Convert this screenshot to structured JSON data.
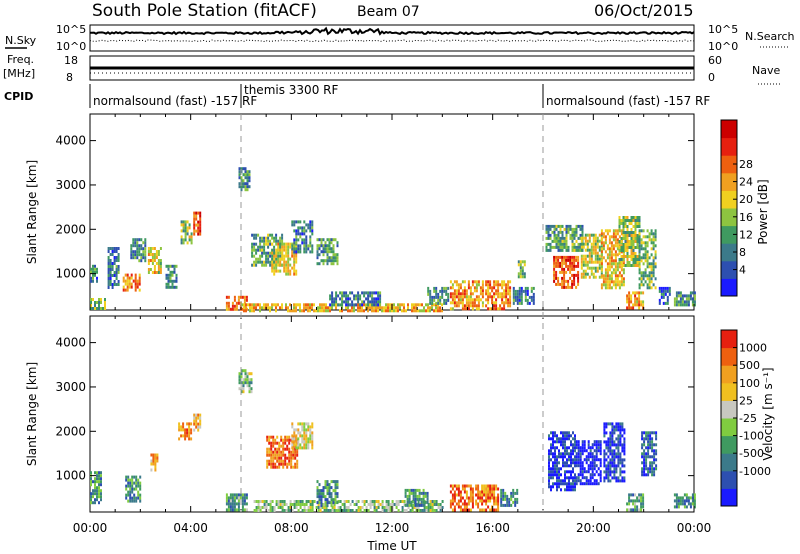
{
  "header": {
    "title": "South Pole Station (fitACF)",
    "beam": "Beam 07",
    "date": "06/Oct/2015"
  },
  "top_strips": {
    "nsky_label": "N.Sky",
    "nsky_tick_hi": "10^5",
    "nsky_tick_lo": "10^0",
    "nsearch_label": "N.Search",
    "nsearch_tick_hi": "10^5",
    "nsearch_tick_lo": "10^0",
    "freq_label_1": "Freq.",
    "freq_label_2": "[MHz]",
    "freq_tick_hi": "18",
    "freq_tick_lo": "8",
    "nave_label": "Nave",
    "nave_tick_hi": "60",
    "nave_tick_lo": "0",
    "cpid_label": "CPID",
    "cpid_segments": [
      {
        "label": "normalsound (fast) -157 RF",
        "start_hour": 0
      },
      {
        "label": "themis 3300 RF",
        "start_hour": 6
      },
      {
        "label": "normalsound (fast) -157 RF",
        "start_hour": 18
      }
    ]
  },
  "chart_data": [
    {
      "type": "heatmap",
      "title": "",
      "xlabel": "Time UT",
      "ylabel": "Slant Range [km]",
      "xlim_hours": [
        0,
        24
      ],
      "ylim": [
        180,
        4600
      ],
      "x_ticks": [
        "00:00",
        "04:00",
        "08:00",
        "12:00",
        "16:00",
        "20:00",
        "00:00"
      ],
      "y_ticks": [
        1000,
        2000,
        3000,
        4000
      ],
      "colorbar": {
        "label": "Power [dB]",
        "ticks": [
          "4",
          "8",
          "12",
          "16",
          "20",
          "24",
          "28"
        ],
        "colors": [
          "#1a1aff",
          "#2d4fb0",
          "#3b7a8a",
          "#3f9a60",
          "#8dc440",
          "#f0d020",
          "#f0a020",
          "#ee6010",
          "#e62010",
          "#cc0000"
        ]
      },
      "regions": [
        {
          "t0": 0.0,
          "t1": 0.6,
          "r0": 200,
          "r1": 450,
          "v": 0.4
        },
        {
          "t0": 0.0,
          "t1": 0.3,
          "r0": 800,
          "r1": 1200,
          "v": 0.25
        },
        {
          "t0": 0.7,
          "t1": 1.1,
          "r0": 700,
          "r1": 1600,
          "v": 0.25
        },
        {
          "t0": 1.3,
          "t1": 2.0,
          "r0": 600,
          "r1": 1000,
          "v": 0.7
        },
        {
          "t0": 1.6,
          "t1": 2.2,
          "r0": 1300,
          "r1": 1800,
          "v": 0.3
        },
        {
          "t0": 2.3,
          "t1": 2.8,
          "r0": 1000,
          "r1": 1600,
          "v": 0.55
        },
        {
          "t0": 3.0,
          "t1": 3.4,
          "r0": 700,
          "r1": 1200,
          "v": 0.3
        },
        {
          "t0": 3.6,
          "t1": 4.0,
          "r0": 1700,
          "r1": 2200,
          "v": 0.45
        },
        {
          "t0": 4.1,
          "t1": 4.4,
          "r0": 1900,
          "r1": 2400,
          "v": 0.8
        },
        {
          "t0": 5.4,
          "t1": 6.2,
          "r0": 200,
          "r1": 500,
          "v": 0.7
        },
        {
          "t0": 5.9,
          "t1": 6.3,
          "r0": 2900,
          "r1": 3400,
          "v": 0.3
        },
        {
          "t0": 6.4,
          "t1": 7.6,
          "r0": 1200,
          "r1": 1900,
          "v": 0.35
        },
        {
          "t0": 7.2,
          "t1": 8.2,
          "r0": 1000,
          "r1": 1700,
          "v": 0.55
        },
        {
          "t0": 8.0,
          "t1": 8.8,
          "r0": 1500,
          "r1": 2200,
          "v": 0.25
        },
        {
          "t0": 9.0,
          "t1": 9.8,
          "r0": 1200,
          "r1": 1800,
          "v": 0.3
        },
        {
          "t0": 6.0,
          "t1": 14.0,
          "r0": 180,
          "r1": 330,
          "v": 0.6
        },
        {
          "t0": 9.5,
          "t1": 11.5,
          "r0": 300,
          "r1": 600,
          "v": 0.25
        },
        {
          "t0": 13.4,
          "t1": 14.2,
          "r0": 300,
          "r1": 700,
          "v": 0.3
        },
        {
          "t0": 14.3,
          "t1": 15.6,
          "r0": 200,
          "r1": 850,
          "v": 0.65
        },
        {
          "t0": 15.7,
          "t1": 16.7,
          "r0": 200,
          "r1": 850,
          "v": 0.7
        },
        {
          "t0": 16.8,
          "t1": 17.6,
          "r0": 300,
          "r1": 700,
          "v": 0.25
        },
        {
          "t0": 17.0,
          "t1": 17.3,
          "r0": 900,
          "r1": 1300,
          "v": 0.4
        },
        {
          "t0": 18.1,
          "t1": 19.6,
          "r0": 1500,
          "r1": 2100,
          "v": 0.35
        },
        {
          "t0": 18.4,
          "t1": 19.4,
          "r0": 700,
          "r1": 1400,
          "v": 0.8
        },
        {
          "t0": 19.5,
          "t1": 20.3,
          "r0": 900,
          "r1": 1900,
          "v": 0.5
        },
        {
          "t0": 20.3,
          "t1": 21.2,
          "r0": 700,
          "r1": 2000,
          "v": 0.6
        },
        {
          "t0": 21.0,
          "t1": 21.8,
          "r0": 1200,
          "r1": 2300,
          "v": 0.45
        },
        {
          "t0": 21.3,
          "t1": 22.0,
          "r0": 200,
          "r1": 600,
          "v": 0.65
        },
        {
          "t0": 21.8,
          "t1": 22.5,
          "r0": 700,
          "r1": 2000,
          "v": 0.4
        },
        {
          "t0": 22.6,
          "t1": 23.0,
          "r0": 300,
          "r1": 700,
          "v": 0.2
        },
        {
          "t0": 23.2,
          "t1": 24.0,
          "r0": 300,
          "r1": 600,
          "v": 0.3
        }
      ]
    },
    {
      "type": "heatmap",
      "title": "",
      "xlabel": "Time UT",
      "ylabel": "Slant Range [km]",
      "xlim_hours": [
        0,
        24
      ],
      "ylim": [
        180,
        4600
      ],
      "x_ticks": [
        "00:00",
        "04:00",
        "08:00",
        "12:00",
        "16:00",
        "20:00",
        "00:00"
      ],
      "y_ticks": [
        1000,
        2000,
        3000,
        4000
      ],
      "colorbar": {
        "label": "Velocity [m s⁻¹]",
        "ticks": [
          "1000",
          "500",
          "100",
          "25",
          "-25",
          "-100",
          "-500",
          "-1000"
        ],
        "colors": [
          "#1a1aff",
          "#2d4fb0",
          "#3b7a8a",
          "#3f9a60",
          "#80cc40",
          "#c8c8c0",
          "#f0c020",
          "#f0a020",
          "#ee6010",
          "#e62010"
        ]
      },
      "regions": [
        {
          "t0": 0.0,
          "t1": 0.4,
          "r0": 400,
          "r1": 1100,
          "v": 0.3
        },
        {
          "t0": 1.4,
          "t1": 2.0,
          "r0": 400,
          "r1": 1000,
          "v": 0.3
        },
        {
          "t0": 2.4,
          "t1": 2.7,
          "r0": 1100,
          "r1": 1500,
          "v": 0.7
        },
        {
          "t0": 3.5,
          "t1": 4.0,
          "r0": 1800,
          "r1": 2200,
          "v": 0.75
        },
        {
          "t0": 4.1,
          "t1": 4.4,
          "r0": 2000,
          "r1": 2400,
          "v": 0.7
        },
        {
          "t0": 5.4,
          "t1": 6.2,
          "r0": 250,
          "r1": 600,
          "v": 0.35
        },
        {
          "t0": 5.9,
          "t1": 6.4,
          "r0": 2900,
          "r1": 3400,
          "v": 0.45
        },
        {
          "t0": 7.0,
          "t1": 8.2,
          "r0": 1200,
          "r1": 1900,
          "v": 0.85
        },
        {
          "t0": 8.0,
          "t1": 8.8,
          "r0": 1600,
          "r1": 2200,
          "v": 0.6
        },
        {
          "t0": 6.5,
          "t1": 14.0,
          "r0": 180,
          "r1": 450,
          "v": 0.45
        },
        {
          "t0": 9.0,
          "t1": 9.8,
          "r0": 300,
          "r1": 900,
          "v": 0.3
        },
        {
          "t0": 12.5,
          "t1": 13.4,
          "r0": 300,
          "r1": 700,
          "v": 0.3
        },
        {
          "t0": 14.3,
          "t1": 15.2,
          "r0": 200,
          "r1": 800,
          "v": 0.85
        },
        {
          "t0": 15.3,
          "t1": 16.2,
          "r0": 200,
          "r1": 800,
          "v": 0.8
        },
        {
          "t0": 16.3,
          "t1": 17.0,
          "r0": 300,
          "r1": 700,
          "v": 0.3
        },
        {
          "t0": 18.2,
          "t1": 19.3,
          "r0": 700,
          "r1": 2000,
          "v": 0.08
        },
        {
          "t0": 19.3,
          "t1": 20.3,
          "r0": 800,
          "r1": 1800,
          "v": 0.05
        },
        {
          "t0": 20.4,
          "t1": 21.2,
          "r0": 900,
          "r1": 2200,
          "v": 0.1
        },
        {
          "t0": 21.3,
          "t1": 22.0,
          "r0": 200,
          "r1": 600,
          "v": 0.35
        },
        {
          "t0": 21.9,
          "t1": 22.5,
          "r0": 1000,
          "r1": 2000,
          "v": 0.2
        },
        {
          "t0": 23.2,
          "t1": 24.0,
          "r0": 300,
          "r1": 600,
          "v": 0.3
        }
      ]
    }
  ]
}
